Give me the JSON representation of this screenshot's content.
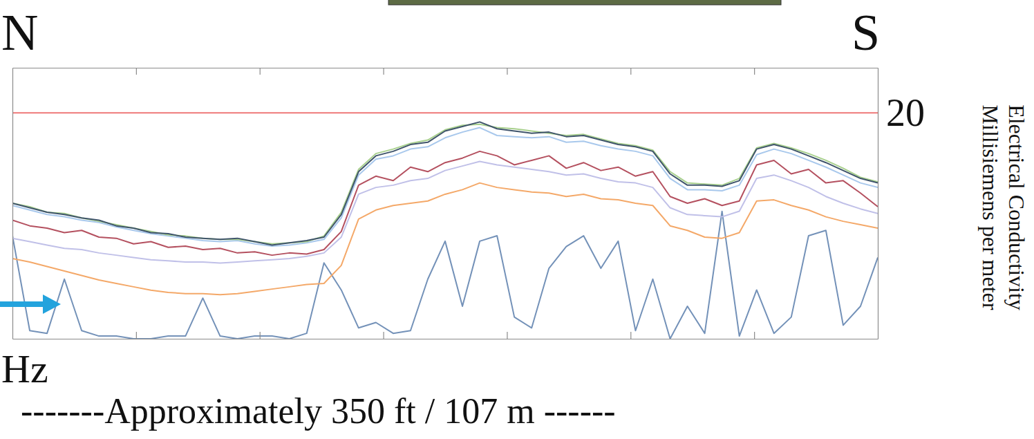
{
  "chart_data": {
    "type": "line",
    "annotations": [
      "N",
      "S"
    ],
    "xlabel": "-------Approximately 350 ft / 107 m ------",
    "ylabel": [
      "Electrical Conductivity",
      "Millisiemens per meter"
    ],
    "y2label": "Hz",
    "tick_labels": "y",
    "x": [
      0,
      7,
      14,
      21,
      28,
      35,
      42,
      49,
      56,
      63,
      70,
      77,
      84,
      91,
      98,
      105,
      112,
      119,
      126,
      133,
      140,
      147,
      154,
      161,
      168,
      175,
      182,
      189,
      196,
      203,
      210,
      217,
      224,
      231,
      238,
      245,
      252,
      259,
      266,
      273,
      280,
      287,
      294,
      301,
      308,
      315,
      322,
      329,
      336,
      343,
      350
    ],
    "xlim": [
      0,
      350
    ],
    "xticks": [
      50,
      100,
      150,
      200,
      250,
      300
    ],
    "ylim": [
      0,
      24
    ],
    "yticks": [
      20
    ],
    "y2lim": [
      0,
      100
    ],
    "y2ticks": [],
    "series": [
      {
        "axis": "y2",
        "color": "#7391b8",
        "values": [
          38,
          3,
          2,
          22,
          3,
          1,
          1,
          0,
          0,
          1,
          1,
          15,
          1,
          0,
          1,
          1,
          0,
          2,
          28,
          18,
          4,
          6,
          2,
          3,
          22,
          36,
          12,
          36,
          38,
          8,
          4,
          26,
          34,
          38,
          26,
          36,
          3,
          22,
          0,
          12,
          2,
          47,
          1,
          18,
          2,
          8,
          38,
          40,
          5,
          12,
          30
        ]
      },
      {
        "color": "#f4a868",
        "values": [
          7.1,
          6.8,
          6.4,
          6.0,
          5.6,
          5.2,
          4.9,
          4.6,
          4.3,
          4.1,
          4.0,
          4.0,
          3.9,
          4.0,
          4.2,
          4.4,
          4.6,
          4.8,
          4.9,
          6.5,
          10.6,
          11.4,
          11.8,
          12.0,
          12.2,
          12.8,
          13.2,
          13.8,
          13.4,
          13.2,
          13.0,
          12.9,
          12.6,
          12.8,
          12.4,
          12.3,
          12.0,
          11.8,
          10.0,
          9.6,
          9.0,
          8.9,
          9.4,
          12.2,
          12.3,
          11.8,
          11.4,
          10.8,
          10.4,
          10.1,
          9.8
        ]
      },
      {
        "color": "#c0c0e8",
        "values": [
          8.9,
          8.6,
          8.3,
          8.0,
          7.9,
          7.6,
          7.4,
          7.2,
          7.0,
          6.9,
          6.8,
          6.8,
          6.7,
          6.8,
          6.9,
          7.0,
          7.1,
          7.3,
          7.6,
          9.0,
          12.8,
          13.4,
          13.6,
          14.0,
          14.2,
          14.9,
          15.3,
          15.7,
          15.4,
          15.2,
          15.0,
          14.8,
          14.5,
          14.6,
          14.2,
          13.9,
          13.8,
          13.4,
          11.6,
          11.0,
          10.9,
          10.8,
          11.3,
          14.2,
          14.5,
          14.0,
          13.4,
          12.6,
          12.0,
          11.5,
          11.1
        ]
      },
      {
        "color": "#b4505f",
        "values": [
          10.5,
          10.0,
          9.8,
          9.4,
          9.6,
          9.0,
          8.9,
          8.4,
          8.6,
          8.1,
          8.2,
          7.9,
          8.0,
          7.6,
          7.7,
          7.4,
          7.6,
          7.5,
          7.9,
          9.5,
          13.6,
          14.4,
          14.0,
          15.2,
          14.8,
          15.6,
          16.0,
          16.6,
          16.2,
          15.4,
          15.8,
          16.2,
          15.1,
          15.6,
          14.9,
          15.2,
          14.4,
          14.8,
          12.6,
          12.0,
          12.4,
          11.8,
          12.2,
          15.4,
          15.8,
          14.6,
          15.0,
          13.8,
          14.0,
          12.9,
          11.7
        ]
      },
      {
        "color": "#a8c8ec",
        "values": [
          11.8,
          11.4,
          11.0,
          10.8,
          10.5,
          10.3,
          9.9,
          9.6,
          9.3,
          9.1,
          8.9,
          8.7,
          8.6,
          8.7,
          8.4,
          8.2,
          8.3,
          8.5,
          8.8,
          10.7,
          14.5,
          15.9,
          16.2,
          16.8,
          17.0,
          17.8,
          18.3,
          18.7,
          18.0,
          17.9,
          17.8,
          17.9,
          17.4,
          17.5,
          17.1,
          16.8,
          16.6,
          16.2,
          14.2,
          13.2,
          13.2,
          13.1,
          13.6,
          16.3,
          16.8,
          16.4,
          15.8,
          15.2,
          14.5,
          13.8,
          13.4
        ]
      },
      {
        "color": "#a8d08d",
        "values": [
          12.0,
          11.7,
          11.2,
          11.1,
          10.7,
          10.4,
          10.1,
          9.8,
          9.5,
          9.2,
          9.1,
          8.9,
          8.8,
          8.8,
          8.6,
          8.4,
          8.5,
          8.6,
          9.1,
          11.2,
          15.0,
          16.4,
          16.8,
          17.3,
          17.6,
          18.5,
          18.9,
          19.0,
          18.7,
          18.6,
          18.4,
          18.2,
          18.0,
          18.1,
          17.7,
          17.3,
          17.1,
          16.7,
          14.8,
          13.8,
          13.7,
          13.6,
          14.2,
          16.9,
          17.3,
          16.9,
          16.4,
          15.8,
          15.1,
          14.3,
          13.9
        ]
      },
      {
        "color": "#3f546b",
        "values": [
          12.0,
          11.6,
          11.2,
          11.0,
          10.7,
          10.5,
          10.0,
          9.8,
          9.4,
          9.3,
          9.0,
          8.9,
          8.8,
          8.9,
          8.6,
          8.3,
          8.5,
          8.7,
          9.0,
          11.0,
          14.8,
          16.2,
          16.6,
          17.2,
          17.4,
          18.4,
          18.8,
          19.2,
          18.6,
          18.4,
          18.2,
          18.3,
          17.9,
          18.0,
          17.6,
          17.2,
          17.0,
          16.6,
          14.6,
          13.6,
          13.6,
          13.5,
          14.0,
          16.8,
          17.2,
          16.8,
          16.2,
          15.6,
          14.9,
          14.2,
          13.8
        ]
      },
      {
        "color": "#ee7777",
        "values": [
          20,
          20,
          20,
          20,
          20,
          20,
          20,
          20,
          20,
          20,
          20,
          20,
          20,
          20,
          20,
          20,
          20,
          20,
          20,
          20,
          20,
          20,
          20,
          20,
          20,
          20,
          20,
          20,
          20,
          20,
          20,
          20,
          20,
          20,
          20,
          20,
          20,
          20,
          20,
          20,
          20,
          20,
          20,
          20,
          20,
          20,
          20,
          20,
          20,
          20,
          20
        ]
      }
    ]
  }
}
